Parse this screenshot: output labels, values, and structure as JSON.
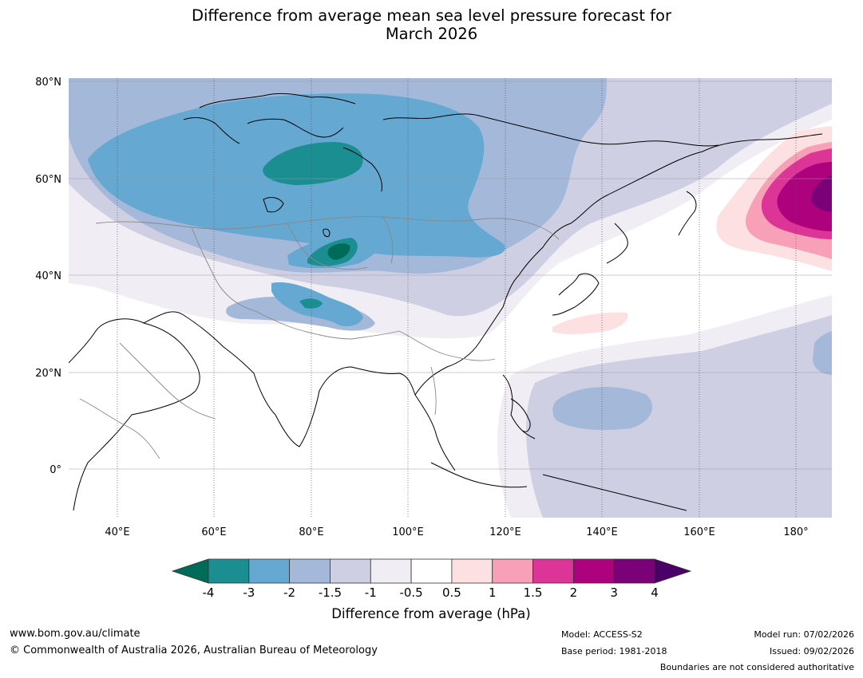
{
  "title": {
    "line1": "Difference from average mean sea level pressure forecast for",
    "line2": "March 2026"
  },
  "map": {
    "lat_ticks": [
      "80°N",
      "60°N",
      "40°N",
      "20°N",
      "0°"
    ],
    "lon_ticks": [
      "40°E",
      "60°E",
      "80°E",
      "100°E",
      "120°E",
      "140°E",
      "160°E",
      "180°"
    ],
    "lat_values": [
      80,
      60,
      40,
      20,
      0
    ],
    "lon_values": [
      40,
      60,
      80,
      100,
      120,
      140,
      160,
      180
    ],
    "extent": {
      "lon": [
        30,
        192
      ],
      "lat": [
        -10,
        81
      ]
    }
  },
  "colorbar": {
    "label": "Difference from average (hPa)",
    "ticks": [
      "-4",
      "-3",
      "-2",
      "-1.5",
      "-1",
      "-0.5",
      "0.5",
      "1",
      "1.5",
      "2",
      "3",
      "4"
    ],
    "under_color": "#006b58",
    "over_color": "#4a0066",
    "colors": [
      "#1b8e91",
      "#65a8d1",
      "#a4b8da",
      "#cfcfe4",
      "#f1edf5",
      "#ffffff",
      "#fde0e1",
      "#f7a0b8",
      "#dd3497",
      "#ae017e",
      "#7a0177"
    ]
  },
  "footer": {
    "url": "www.bom.gov.au/climate",
    "copyright": "© Commonwealth of Australia 2026, Australian Bureau of Meteorology",
    "model": "Model: ACCESS-S2",
    "base_period": "Base period: 1981-2018",
    "model_run": "Model run: 07/02/2026",
    "issued": "Issued: 09/02/2026",
    "disclaimer": "Boundaries are not considered authoritative"
  }
}
